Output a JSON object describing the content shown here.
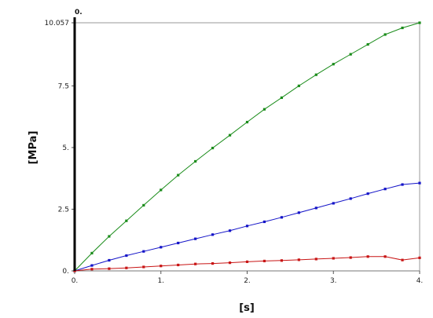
{
  "chart_data": {
    "type": "line",
    "title": "",
    "xlabel": "[s]",
    "ylabel": "[MPa]",
    "xlim": [
      0,
      4
    ],
    "ylim": [
      0,
      10.057
    ],
    "x_ticks": [
      {
        "value": 0,
        "label": "0."
      },
      {
        "value": 1,
        "label": "1."
      },
      {
        "value": 2,
        "label": "2."
      },
      {
        "value": 3,
        "label": "3."
      },
      {
        "value": 4,
        "label": "4."
      }
    ],
    "y_ticks": [
      {
        "value": 0,
        "label": "0."
      },
      {
        "value": 2.5,
        "label": "2.5"
      },
      {
        "value": 5,
        "label": "5."
      },
      {
        "value": 7.5,
        "label": "7.5"
      },
      {
        "value": 10.057,
        "label": "10.057"
      }
    ],
    "cursor": {
      "x": 0,
      "label": "0."
    },
    "grid": false,
    "x": [
      0,
      0.2,
      0.4,
      0.6,
      0.8,
      1.0,
      1.2,
      1.4,
      1.6,
      1.8,
      2.0,
      2.2,
      2.4,
      2.6,
      2.8,
      3.0,
      3.2,
      3.4,
      3.6,
      3.8,
      4.0
    ],
    "series": [
      {
        "color": "#1a8c1a",
        "values": [
          0,
          0.72,
          1.4,
          2.03,
          2.66,
          3.28,
          3.88,
          4.44,
          4.98,
          5.5,
          6.03,
          6.55,
          7.02,
          7.5,
          7.95,
          8.38,
          8.78,
          9.18,
          9.58,
          9.85,
          10.057
        ]
      },
      {
        "color": "#1414c8",
        "values": [
          0,
          0.22,
          0.43,
          0.62,
          0.79,
          0.96,
          1.13,
          1.3,
          1.47,
          1.63,
          1.82,
          1.99,
          2.17,
          2.36,
          2.55,
          2.74,
          2.93,
          3.13,
          3.32,
          3.5,
          3.56
        ]
      },
      {
        "color": "#c81414",
        "values": [
          0,
          0.07,
          0.09,
          0.12,
          0.16,
          0.2,
          0.24,
          0.28,
          0.3,
          0.33,
          0.37,
          0.4,
          0.42,
          0.45,
          0.48,
          0.51,
          0.54,
          0.58,
          0.58,
          0.44,
          0.53
        ]
      }
    ]
  }
}
